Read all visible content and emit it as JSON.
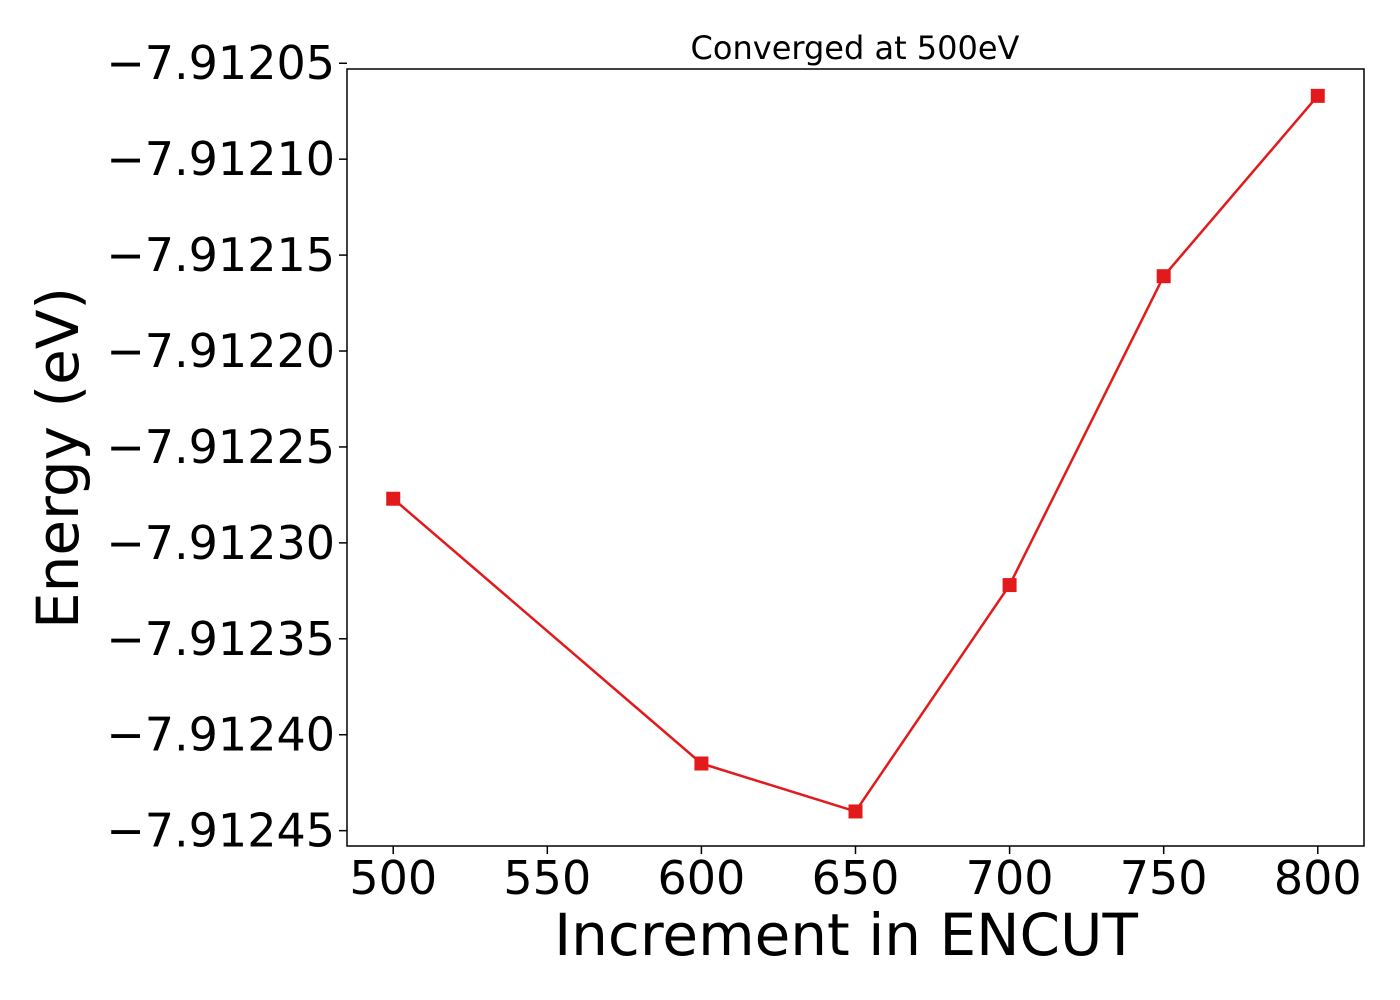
{
  "chart_data": {
    "type": "line",
    "title": "Converged at 500eV",
    "xlabel": "Increment in ENCUT",
    "ylabel": "Energy (eV)",
    "x": [
      500,
      600,
      650,
      700,
      750,
      800
    ],
    "series": [
      {
        "values": [
          -7.912277,
          -7.912415,
          -7.91244,
          -7.912322,
          -7.912161,
          -7.912067
        ],
        "color": "#e31a1c",
        "marker": "square"
      }
    ],
    "xlim": [
      485,
      815
    ],
    "ylim": [
      -7.912458,
      -7.912053
    ],
    "xticks": [
      500,
      550,
      600,
      650,
      700,
      750,
      800
    ],
    "xtick_labels": [
      "500",
      "550",
      "600",
      "650",
      "700",
      "750",
      "800"
    ],
    "yticks": [
      -7.91205,
      -7.9121,
      -7.91215,
      -7.9122,
      -7.91225,
      -7.9123,
      -7.91235,
      -7.9124,
      -7.91245
    ],
    "ytick_labels": [
      "−7.91205",
      "−7.91210",
      "−7.91215",
      "−7.91220",
      "−7.91225",
      "−7.91230",
      "−7.91235",
      "−7.91240",
      "−7.91245"
    ],
    "grid": false,
    "legend": "none"
  }
}
